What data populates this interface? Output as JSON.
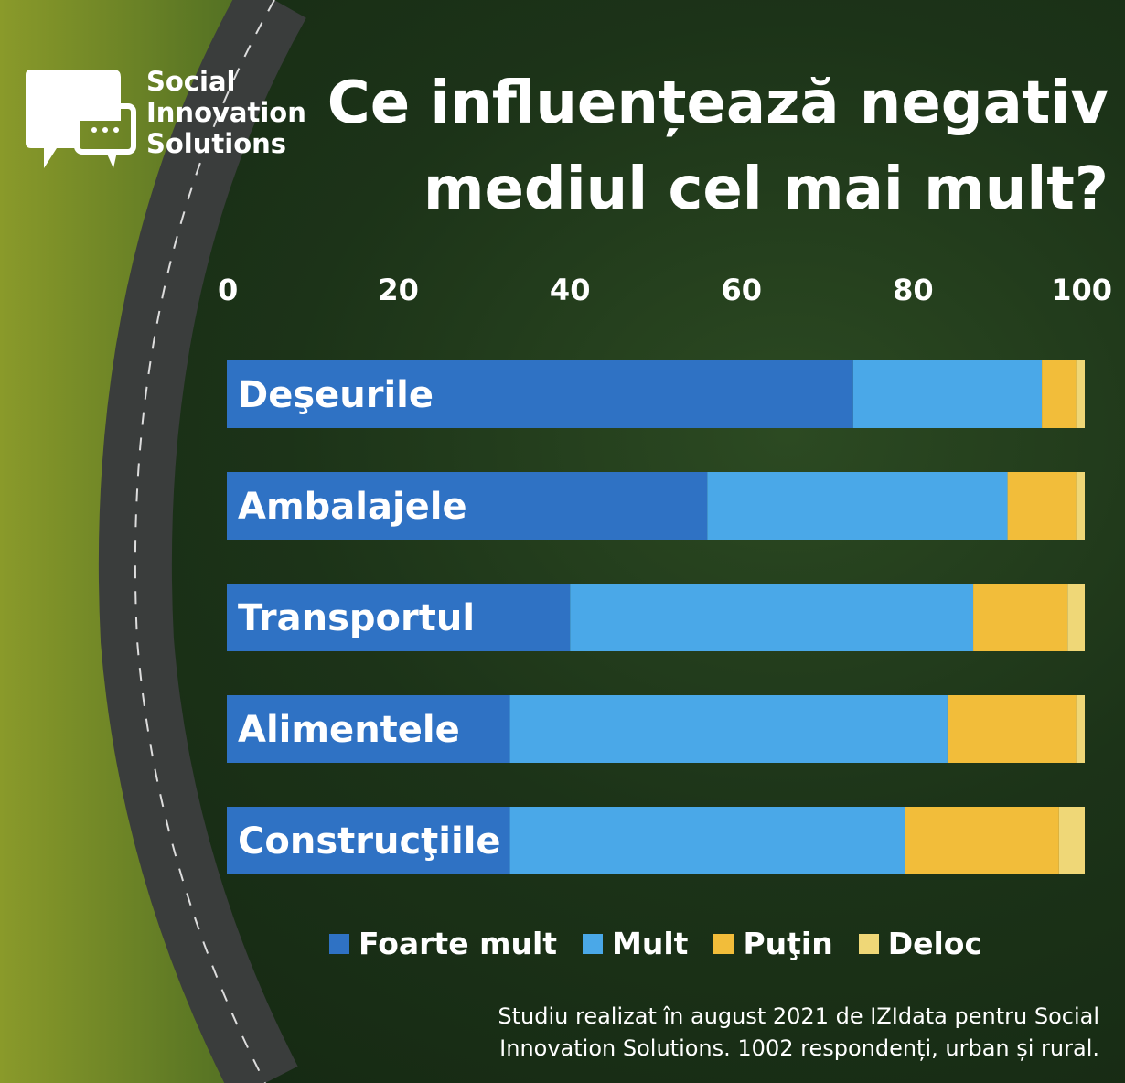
{
  "brand": {
    "name_lines": [
      "Social",
      "Innovation",
      "Solutions"
    ]
  },
  "title_lines": [
    "Ce influențează negativ",
    "mediul cel mai mult?"
  ],
  "footer_lines": [
    "Studiu realizat în august 2021 de IZIdata pentru Social",
    "Innovation Solutions. 1002 respondenți, urban și rural."
  ],
  "chart_data": {
    "type": "bar",
    "orientation": "horizontal",
    "stacked": true,
    "title": "Ce influențează negativ mediul cel mai mult?",
    "categories": [
      "Deşeurile",
      "Ambalajele",
      "Transportul",
      "Alimentele",
      "Construcţiile"
    ],
    "series": [
      {
        "name": "Foarte mult",
        "color": "#2f72c4",
        "values": [
          73,
          56,
          40,
          33,
          33
        ]
      },
      {
        "name": "Mult",
        "color": "#4aa8e8",
        "values": [
          22,
          35,
          47,
          51,
          46
        ]
      },
      {
        "name": "Puţin",
        "color": "#f2bd3a",
        "values": [
          4,
          8,
          11,
          15,
          18
        ]
      },
      {
        "name": "Deloc",
        "color": "#efd777",
        "values": [
          1,
          1,
          2,
          1,
          3
        ]
      }
    ],
    "xlim": [
      0,
      100
    ],
    "xticks": [
      "0",
      "20",
      "40",
      "60",
      "80",
      "100"
    ],
    "legend": "bottom"
  }
}
